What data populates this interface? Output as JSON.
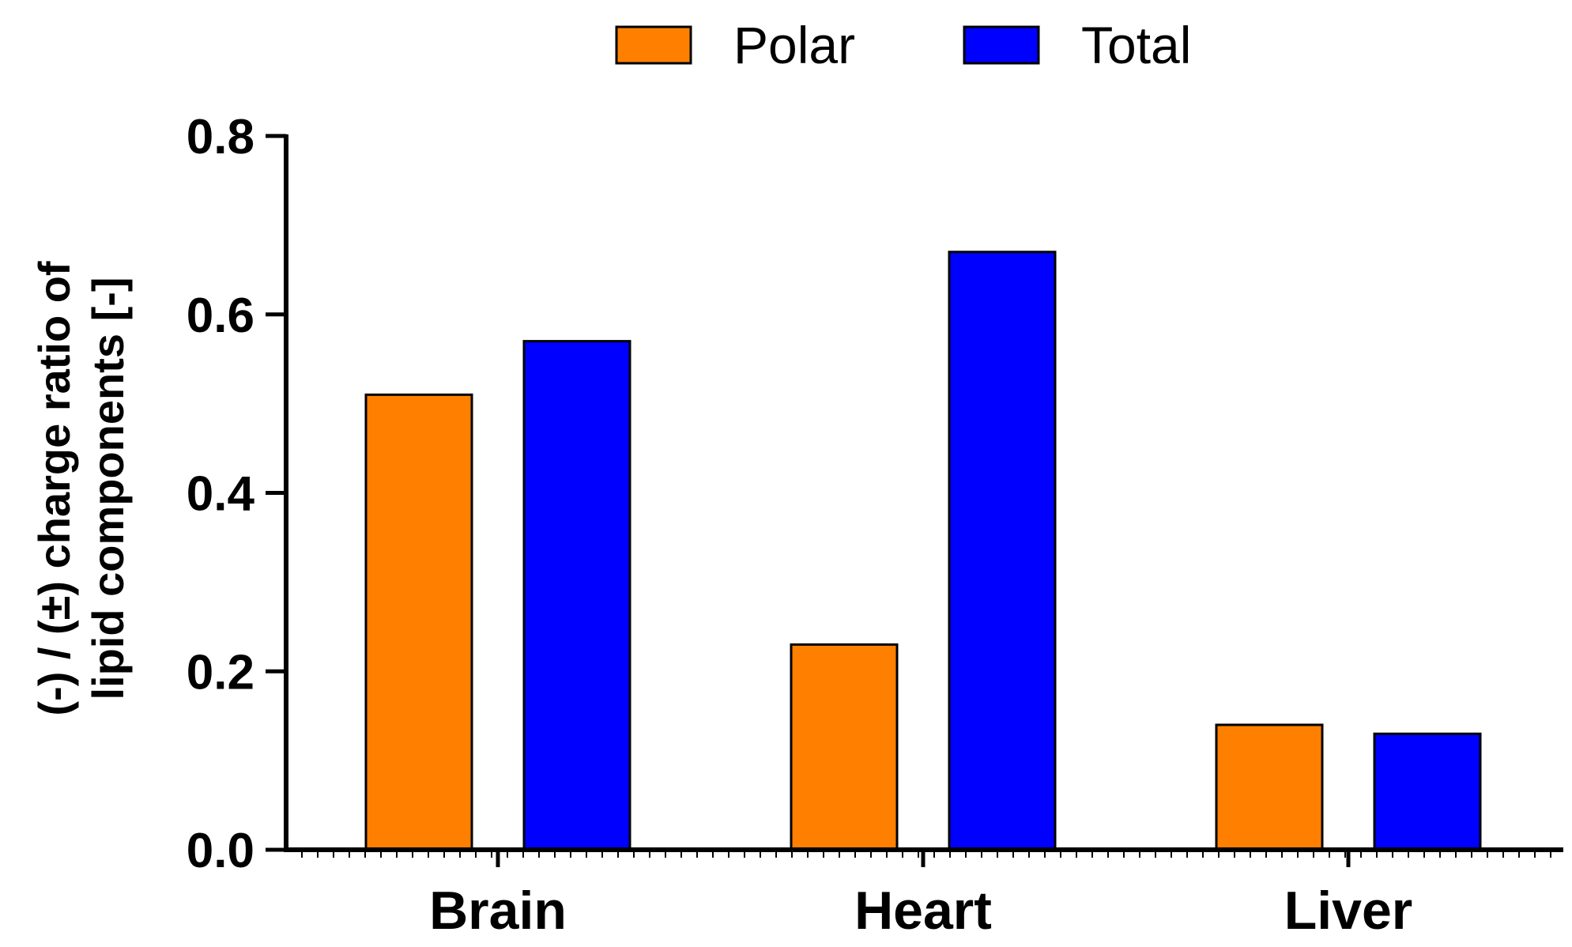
{
  "chart_data": {
    "type": "bar",
    "categories": [
      "Brain",
      "Heart",
      "Liver"
    ],
    "series": [
      {
        "name": "Polar",
        "values": [
          0.51,
          0.23,
          0.14
        ],
        "color": "#FF8000"
      },
      {
        "name": "Total",
        "values": [
          0.57,
          0.67,
          0.13
        ],
        "color": "#0000FF"
      }
    ],
    "title": "",
    "xlabel": "",
    "ylabel_lines": [
      "(-) / (±) charge ratio of",
      "lipid components [-]"
    ],
    "ylim": [
      0,
      0.8
    ],
    "yticks": [
      "0.0",
      "0.2",
      "0.4",
      "0.6",
      "0.8"
    ],
    "legend_position": "top-center",
    "grid": false
  }
}
